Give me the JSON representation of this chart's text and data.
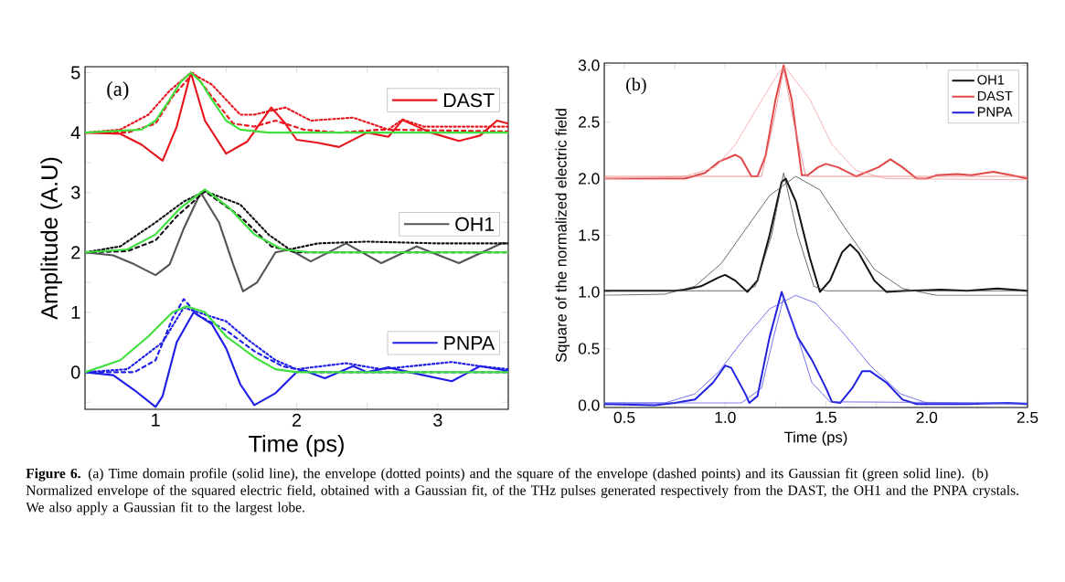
{
  "chart_data": [
    {
      "type": "line",
      "xlabel": "Time (ps)",
      "ylabel": "Amplitude (A.U)",
      "legend": "right",
      "xlim": [
        0.5,
        3.5
      ],
      "ylim": [
        -0.62,
        5.1
      ],
      "xticks": [
        1,
        {
          "value": 1.5,
          "label": null
        },
        2,
        {
          "value": 2.5,
          "label": null
        },
        3
      ],
      "yticks": [
        {
          "value": -0.5,
          "label": null
        },
        0,
        {
          "value": 0.5,
          "label": null
        },
        1,
        {
          "value": 1.5,
          "label": null
        },
        2,
        {
          "value": 2.5,
          "label": null
        },
        3,
        {
          "value": 3.5,
          "label": null
        },
        4,
        {
          "value": 4.5,
          "label": null
        },
        5
      ],
      "annotations": [
        "(a)",
        "**Figure 6.** (a) Time domain profile (solid line), the envelope (dotted points) and the square of the envelope (dashed points) and its Gaussian fit (green solid line). (b) Normalized envelope of the squared electric field, obtained with a Gaussian fit, of the THz pulses generated respectively from the DAST, the OH1 and the PNPA crystals. We also apply a Gaussian fit to the largest lobe."
      ],
      "series": [
        {
          "name": "DAST",
          "color": "#e8141b",
          "line_style": "solid",
          "x": [
            0.5,
            0.75,
            0.9,
            1.05,
            1.15,
            1.25,
            1.35,
            1.5,
            1.65,
            1.82,
            1.92,
            2.0,
            2.15,
            2.3,
            2.5,
            2.65,
            2.75,
            2.95,
            3.15,
            3.3,
            3.42,
            3.5
          ],
          "values": [
            4.0,
            3.98,
            3.8,
            3.53,
            4.1,
            5.0,
            4.2,
            3.65,
            3.85,
            4.42,
            4.15,
            3.88,
            3.83,
            3.76,
            4.0,
            3.93,
            4.21,
            4.0,
            3.86,
            3.95,
            4.2,
            4.15
          ]
        },
        {
          "name": "OH1",
          "color": "#555555",
          "line_style": "solid",
          "x": [
            0.5,
            0.7,
            0.85,
            1.0,
            1.1,
            1.2,
            1.32,
            1.45,
            1.55,
            1.62,
            1.72,
            1.85,
            1.95,
            2.1,
            2.35,
            2.6,
            2.85,
            3.15,
            3.45,
            3.5
          ],
          "values": [
            2.0,
            1.95,
            1.8,
            1.62,
            1.8,
            2.4,
            3.0,
            2.5,
            1.8,
            1.35,
            1.5,
            2.0,
            2.05,
            1.85,
            2.15,
            1.82,
            2.1,
            1.82,
            2.15,
            2.15
          ]
        },
        {
          "name": "PNPA",
          "color": "#1e1ee6",
          "line_style": "solid",
          "x": [
            0.5,
            0.7,
            0.85,
            1.0,
            1.05,
            1.15,
            1.27,
            1.4,
            1.5,
            1.6,
            1.7,
            1.85,
            2.0,
            2.05,
            2.2,
            2.4,
            2.5,
            2.65,
            2.8,
            3.1,
            3.3,
            3.5
          ],
          "values": [
            0.0,
            -0.05,
            -0.3,
            -0.58,
            -0.4,
            0.5,
            1.0,
            0.8,
            0.4,
            -0.2,
            -0.55,
            -0.35,
            0.0,
            0.03,
            -0.1,
            0.1,
            0.0,
            0.08,
            0.0,
            -0.15,
            0.1,
            0.02
          ]
        },
        {
          "color": "#e8141b",
          "line_style": "dotted",
          "x": [
            0.5,
            0.75,
            0.95,
            1.1,
            1.25,
            1.4,
            1.6,
            1.7,
            1.92,
            2.1,
            2.4,
            2.65,
            2.75,
            2.9,
            3.5
          ],
          "values": [
            4.0,
            4.05,
            4.3,
            4.7,
            5.0,
            4.8,
            4.3,
            4.3,
            4.42,
            4.2,
            4.25,
            4.05,
            4.22,
            4.1,
            4.1
          ]
        },
        {
          "color": "#e8141b",
          "line_style": "dashed",
          "x": [
            0.5,
            0.8,
            1.0,
            1.12,
            1.27,
            1.4,
            1.55,
            1.7,
            1.85,
            2.05,
            2.3,
            2.6,
            3.5
          ],
          "values": [
            4.0,
            4.0,
            4.15,
            4.6,
            5.0,
            4.6,
            4.15,
            4.1,
            4.2,
            4.05,
            4.0,
            4.05,
            4.02
          ]
        },
        {
          "color": "#3ee03e",
          "line_style": "solid",
          "x": [
            0.5,
            0.9,
            1.0,
            1.1,
            1.18,
            1.25,
            1.32,
            1.4,
            1.5,
            1.6,
            1.8,
            3.5
          ],
          "values": [
            4.0,
            4.05,
            4.2,
            4.55,
            4.85,
            5.0,
            4.85,
            4.55,
            4.2,
            4.05,
            4.0,
            4.0
          ]
        },
        {
          "color": "#111111",
          "line_style": "dotted",
          "x": [
            0.5,
            0.75,
            1.0,
            1.2,
            1.35,
            1.6,
            1.8,
            1.95,
            2.15,
            2.5,
            3.0,
            3.5
          ],
          "values": [
            2.0,
            2.1,
            2.5,
            2.85,
            3.02,
            2.8,
            2.3,
            2.05,
            2.15,
            2.18,
            2.15,
            2.15
          ]
        },
        {
          "color": "#111111",
          "line_style": "dashed",
          "x": [
            0.5,
            0.8,
            1.0,
            1.15,
            1.35,
            1.6,
            1.82,
            2.0,
            3.5
          ],
          "values": [
            2.0,
            2.02,
            2.2,
            2.6,
            3.02,
            2.6,
            2.1,
            2.0,
            2.0
          ]
        },
        {
          "color": "#3ee03e",
          "line_style": "solid",
          "x": [
            0.5,
            0.8,
            1.0,
            1.18,
            1.35,
            1.52,
            1.7,
            1.9,
            2.1,
            3.5
          ],
          "values": [
            2.0,
            2.05,
            2.3,
            2.75,
            3.05,
            2.75,
            2.3,
            2.05,
            2.0,
            2.0
          ]
        },
        {
          "color": "#1e1ee6",
          "line_style": "dotted",
          "x": [
            0.5,
            0.8,
            1.05,
            1.2,
            1.3,
            1.5,
            1.65,
            1.85,
            2.0,
            2.35,
            2.6,
            3.1,
            3.3,
            3.5
          ],
          "values": [
            0.0,
            0.05,
            0.5,
            1.08,
            1.0,
            0.85,
            0.55,
            0.2,
            0.05,
            0.15,
            0.05,
            0.17,
            0.1,
            0.05
          ]
        },
        {
          "color": "#1e1ee6",
          "line_style": "dashed",
          "x": [
            0.5,
            0.85,
            1.0,
            1.12,
            1.2,
            1.3,
            1.5,
            1.7,
            1.9,
            2.1,
            3.5
          ],
          "values": [
            0.0,
            0.0,
            0.2,
            0.9,
            1.22,
            0.95,
            0.7,
            0.35,
            0.1,
            0.0,
            0.0
          ]
        },
        {
          "color": "#3ee03e",
          "line_style": "solid",
          "x": [
            0.5,
            0.75,
            0.95,
            1.12,
            1.22,
            1.35,
            1.5,
            1.7,
            1.85,
            2.0,
            3.5
          ],
          "values": [
            0.0,
            0.2,
            0.6,
            1.0,
            1.1,
            1.0,
            0.6,
            0.25,
            0.05,
            0.0,
            0.0
          ]
        }
      ]
    },
    {
      "type": "line",
      "xlabel": "Time (ps)",
      "ylabel": "Square of the normalized electric field",
      "legend": "top right",
      "xlim": [
        0.4,
        2.5
      ],
      "ylim": [
        -0.02,
        3.02
      ],
      "xticks": [
        0.5,
        {
          "value": 0.75,
          "label": null
        },
        {
          "value": 1.0,
          "label": "1.0"
        },
        {
          "value": 1.25,
          "label": null
        },
        1.5,
        {
          "value": 1.75,
          "label": null
        },
        {
          "value": 2.0,
          "label": "2.0"
        },
        {
          "value": 2.25,
          "label": null
        },
        2.5
      ],
      "yticks": [
        {
          "value": 0.0,
          "label": "0.0"
        },
        0.5,
        {
          "value": 1.0,
          "label": "1.0"
        },
        1.5,
        {
          "value": 2.0,
          "label": "2.0"
        },
        2.5,
        {
          "value": 3.0,
          "label": "3.0"
        }
      ],
      "annotations": [
        "(b)"
      ],
      "series": [
        {
          "name": "OH1",
          "color": "#111111",
          "line_style": "solid",
          "x": [
            0.4,
            0.75,
            0.8,
            0.88,
            0.97,
            1.0,
            1.05,
            1.11,
            1.16,
            1.22,
            1.28,
            1.3,
            1.35,
            1.42,
            1.47,
            1.52,
            1.58,
            1.62,
            1.66,
            1.74,
            1.8,
            1.9,
            2.07,
            2.2,
            2.35,
            2.5
          ],
          "values": [
            1.01,
            1.01,
            1.02,
            1.05,
            1.13,
            1.15,
            1.1,
            1.0,
            1.1,
            1.5,
            1.97,
            2.0,
            1.8,
            1.3,
            1.0,
            1.1,
            1.35,
            1.42,
            1.35,
            1.1,
            1.0,
            1.01,
            1.02,
            1.01,
            1.03,
            1.01
          ]
        },
        {
          "name": "DAST",
          "color": "#e04848",
          "line_style": "solid",
          "x": [
            0.4,
            0.8,
            0.9,
            0.97,
            1.05,
            1.08,
            1.13,
            1.16,
            1.2,
            1.25,
            1.29,
            1.33,
            1.38,
            1.41,
            1.46,
            1.5,
            1.56,
            1.65,
            1.76,
            1.82,
            1.88,
            1.95,
            2.0,
            2.05,
            2.15,
            2.22,
            2.33,
            2.42,
            2.5
          ],
          "values": [
            2.0,
            2.0,
            2.05,
            2.15,
            2.21,
            2.18,
            2.02,
            2.02,
            2.2,
            2.7,
            3.0,
            2.7,
            2.03,
            2.03,
            2.1,
            2.13,
            2.1,
            2.02,
            2.1,
            2.17,
            2.1,
            2.0,
            2.0,
            2.03,
            2.04,
            2.03,
            2.06,
            2.03,
            2.0
          ]
        },
        {
          "name": "PNPA",
          "color": "#2020dd",
          "line_style": "solid",
          "x": [
            0.4,
            0.65,
            0.75,
            0.85,
            0.94,
            1.0,
            1.03,
            1.1,
            1.12,
            1.16,
            1.22,
            1.28,
            1.32,
            1.36,
            1.43,
            1.5,
            1.53,
            1.57,
            1.63,
            1.68,
            1.72,
            1.8,
            1.88,
            1.95,
            2.2,
            2.4,
            2.5
          ],
          "values": [
            0.01,
            0.0,
            0.02,
            0.05,
            0.2,
            0.35,
            0.33,
            0.1,
            0.02,
            0.08,
            0.6,
            1.0,
            0.8,
            0.6,
            0.4,
            0.15,
            0.03,
            0.02,
            0.15,
            0.3,
            0.3,
            0.2,
            0.05,
            0.01,
            0.01,
            0.02,
            0.01
          ]
        },
        {
          "color": "#444444",
          "line_style": "solid",
          "x": [
            0.4,
            0.7,
            0.85,
            0.98,
            1.1,
            1.22,
            1.35,
            1.47,
            1.6,
            1.74,
            1.88,
            2.05,
            2.5
          ],
          "values": [
            0.97,
            0.98,
            1.05,
            1.25,
            1.55,
            1.85,
            2.02,
            1.9,
            1.55,
            1.2,
            1.03,
            0.97,
            0.97
          ]
        },
        {
          "color": "#444444",
          "line_style": "solid",
          "x": [
            0.4,
            1.1,
            1.15,
            1.23,
            1.29,
            1.36,
            1.44,
            1.5,
            2.5
          ],
          "values": [
            1.01,
            1.01,
            1.05,
            1.5,
            2.05,
            1.5,
            1.05,
            1.01,
            1.01
          ]
        },
        {
          "color": "#f2a0a0",
          "line_style": "solid",
          "x": [
            0.4,
            0.8,
            0.95,
            1.05,
            1.15,
            1.27,
            1.3,
            1.42,
            1.53,
            1.65,
            1.8,
            2.5
          ],
          "values": [
            2.0,
            2.02,
            2.1,
            2.3,
            2.6,
            2.95,
            2.98,
            2.7,
            2.3,
            2.07,
            2.0,
            1.99
          ]
        },
        {
          "color": "#e87878",
          "line_style": "solid",
          "x": [
            0.4,
            1.18,
            1.24,
            1.29,
            1.34,
            1.4,
            2.5
          ],
          "values": [
            2.02,
            2.02,
            2.5,
            2.97,
            2.5,
            2.02,
            2.02
          ]
        },
        {
          "color": "#5050e8",
          "line_style": "solid",
          "x": [
            0.4,
            0.7,
            0.85,
            0.97,
            1.1,
            1.22,
            1.35,
            1.45,
            1.58,
            1.72,
            1.87,
            2.0,
            2.5
          ],
          "values": [
            0.02,
            0.02,
            0.1,
            0.3,
            0.6,
            0.85,
            0.97,
            0.9,
            0.65,
            0.35,
            0.1,
            0.02,
            0.01
          ]
        },
        {
          "color": "#5050e8",
          "line_style": "solid",
          "x": [
            0.4,
            1.08,
            1.18,
            1.24,
            1.29,
            1.36,
            1.43,
            1.52,
            2.5
          ],
          "values": [
            0.02,
            0.02,
            0.15,
            0.6,
            0.95,
            0.6,
            0.2,
            0.03,
            0.02
          ]
        }
      ]
    }
  ]
}
